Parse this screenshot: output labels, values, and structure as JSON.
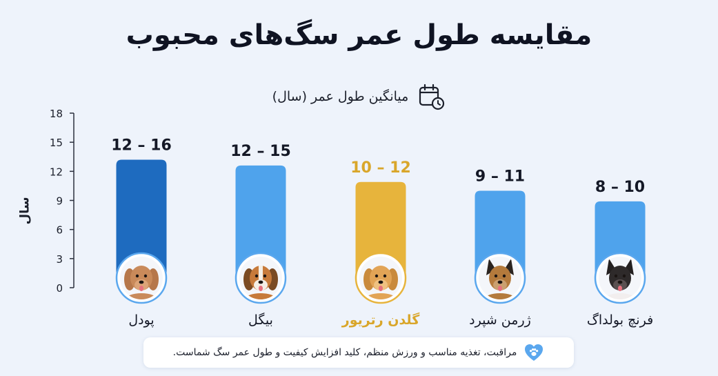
{
  "title": "مقایسه طول عمر سگ‌های محبوب",
  "subtitle": "میانگین طول عمر (سال)",
  "footer": "مراقبت، تغذیه مناسب و ورزش منظم، کلید افزایش کیفیت و طول عمر سگ شماست.",
  "icons": {
    "subtitle": "calendar-clock-icon",
    "footer": "paw-heart-icon"
  },
  "chart_data": {
    "type": "bar",
    "title": "مقایسه طول عمر سگ‌های محبوب",
    "subtitle": "میانگین طول عمر (سال)",
    "ylabel": "سال",
    "xlabel": "",
    "ylim": [
      0,
      18
    ],
    "yticks": [
      0,
      3,
      6,
      9,
      12,
      15,
      18
    ],
    "grid": false,
    "categories": [
      "پودل",
      "بیگل",
      "گلدن رتریور",
      "ژرمن شپرد",
      "فرنچ بولداگ"
    ],
    "values": [
      13.2,
      12.6,
      10.9,
      10,
      8.9
    ],
    "value_labels": [
      "12 – 16",
      "12 – 15",
      "10 – 12",
      "9 – 11",
      "8 – 10"
    ],
    "colors": [
      "#1e6bbf",
      "#4fa3ec",
      "#e7b43c",
      "#4fa3ec",
      "#4fa3ec"
    ],
    "highlight_color": "#d9a62a",
    "highlight_index": 2
  }
}
